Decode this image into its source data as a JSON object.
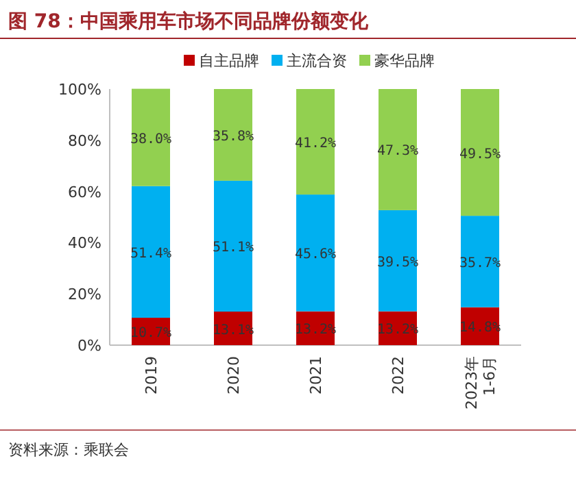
{
  "chart_data": {
    "type": "bar",
    "stacked": true,
    "title": "图 78：中国乘用车市场不同品牌份额变化",
    "categories": [
      "2019",
      "2020",
      "2021",
      "2022",
      "2023年\n1-6月"
    ],
    "series": [
      {
        "name": "自主品牌",
        "color": "#c00000",
        "values": [
          10.7,
          13.1,
          13.2,
          13.2,
          14.8
        ],
        "value_labels": [
          "10.7%",
          "13.1%",
          "13.2%",
          "13.2%",
          "14.8%"
        ]
      },
      {
        "name": "主流合资",
        "color": "#00b0f0",
        "values": [
          51.4,
          51.1,
          45.6,
          39.5,
          35.7
        ],
        "value_labels": [
          "51.4%",
          "51.1%",
          "45.6%",
          "39.5%",
          "35.7%"
        ]
      },
      {
        "name": "豪华品牌",
        "color": "#92d050",
        "values": [
          38.0,
          35.8,
          41.2,
          47.3,
          49.5
        ],
        "value_labels": [
          "38.0%",
          "35.8%",
          "41.2%",
          "47.3%",
          "49.5%"
        ]
      }
    ],
    "ylim": [
      0,
      100
    ],
    "yticks": [
      {
        "value": 0,
        "label": "0%"
      },
      {
        "value": 20,
        "label": "20%"
      },
      {
        "value": 40,
        "label": "40%"
      },
      {
        "value": 60,
        "label": "60%"
      },
      {
        "value": 80,
        "label": "80%"
      },
      {
        "value": 100,
        "label": "100%"
      }
    ],
    "legend": "top",
    "annotations": [
      "资料来源：乘联会"
    ]
  }
}
